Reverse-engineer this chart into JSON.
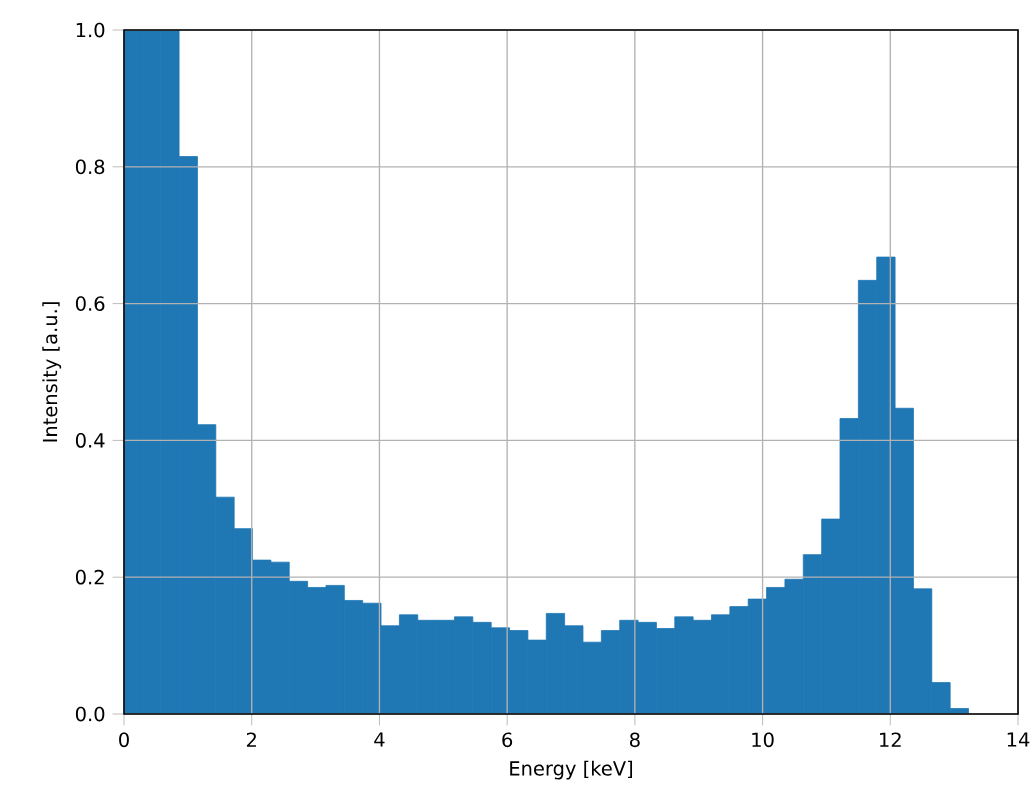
{
  "chart_data": {
    "type": "histogram",
    "xlabel": "Energy [keV]",
    "ylabel": "Intensity [a.u.]",
    "color": "#1f77b4",
    "grid": true,
    "bins": [
      0,
      0.2875,
      0.575,
      0.8625,
      1.15,
      1.4375,
      1.725,
      2.0125,
      2.3,
      2.5875,
      2.875,
      3.1625,
      3.45,
      3.7375,
      4.025,
      4.3125,
      4.6,
      4.8875,
      5.175,
      5.4625,
      5.75,
      6.0375,
      6.325,
      6.6125,
      6.9,
      7.1875,
      7.475,
      7.7625,
      8.05,
      8.3375,
      8.625,
      8.9125,
      9.2,
      9.4875,
      9.775,
      10.0625,
      10.35,
      10.6375,
      10.925,
      11.2125,
      11.5,
      11.7875,
      12.075,
      12.3625,
      12.65,
      12.9375,
      13.225
    ],
    "values": [
      1.0,
      1.0,
      1.0,
      0.815,
      0.423,
      0.317,
      0.271,
      0.225,
      0.222,
      0.194,
      0.185,
      0.188,
      0.166,
      0.162,
      0.129,
      0.145,
      0.137,
      0.137,
      0.142,
      0.134,
      0.126,
      0.122,
      0.108,
      0.147,
      0.129,
      0.105,
      0.122,
      0.137,
      0.134,
      0.125,
      0.142,
      0.137,
      0.145,
      0.157,
      0.168,
      0.185,
      0.197,
      0.233,
      0.285,
      0.432,
      0.634,
      0.668,
      0.447,
      0.183,
      0.046,
      0.008
    ],
    "xlim": [
      0,
      14
    ],
    "ylim": [
      0,
      1
    ],
    "xticks": [
      0,
      2,
      4,
      6,
      8,
      10,
      12,
      14
    ],
    "yticks": [
      {
        "value": 0,
        "label": "0.0"
      },
      {
        "value": 0.2,
        "label": "0.2"
      },
      {
        "value": 0.4,
        "label": "0.4"
      },
      {
        "value": 0.6,
        "label": "0.6"
      },
      {
        "value": 0.8,
        "label": "0.8"
      },
      {
        "value": 1,
        "label": "1.0"
      }
    ]
  }
}
